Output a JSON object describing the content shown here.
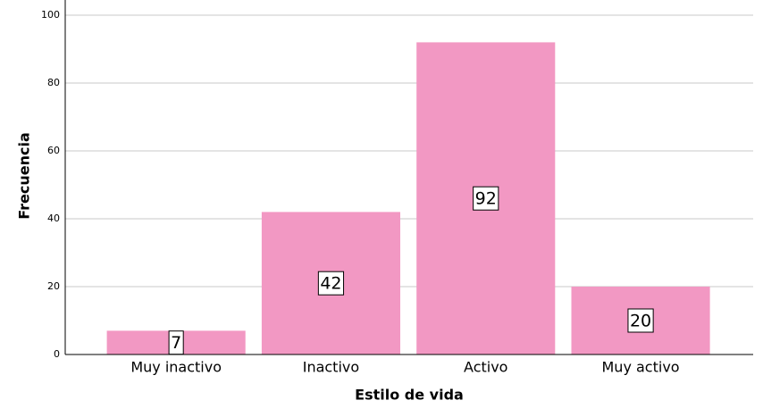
{
  "chart_data": {
    "type": "bar",
    "x_label": "Estilo de vida",
    "y_label": "Frecuencia",
    "categories": [
      "Muy inactivo",
      "Inactivo",
      "Activo",
      "Muy activo"
    ],
    "values": [
      7,
      42,
      92,
      20
    ],
    "color": "#f298c3",
    "ylim": [
      0,
      100
    ],
    "yticks": [
      0,
      20,
      40,
      60,
      80,
      100
    ],
    "grid": true
  }
}
